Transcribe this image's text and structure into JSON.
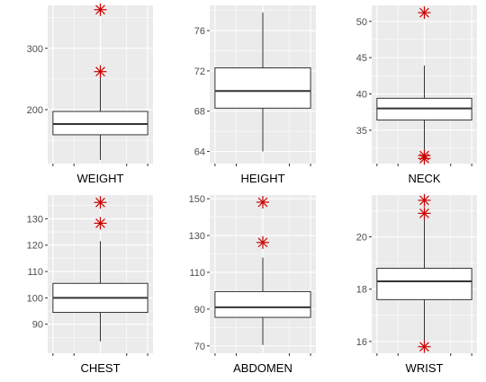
{
  "chart_data": [
    {
      "type": "boxplot",
      "xlabel": "WEIGHT",
      "ylim": [
        112,
        370
      ],
      "yticks": [
        200,
        300
      ],
      "box": {
        "lower_whisker": 118,
        "q1": 159,
        "median": 176.5,
        "q3": 197,
        "upper_whisker": 262
      },
      "outliers": [
        262,
        363
      ],
      "grid": true
    },
    {
      "type": "boxplot",
      "xlabel": "HEIGHT",
      "ylim": [
        62.8,
        78.5
      ],
      "yticks": [
        64,
        68,
        72,
        76
      ],
      "box": {
        "lower_whisker": 64,
        "q1": 68.3,
        "median": 70,
        "q3": 72.3,
        "upper_whisker": 77.8
      },
      "outliers": [],
      "grid": true
    },
    {
      "type": "boxplot",
      "xlabel": "NECK",
      "ylim": [
        30.4,
        52.2
      ],
      "yticks": [
        35,
        40,
        45,
        50
      ],
      "box": {
        "lower_whisker": 31.5,
        "q1": 36.4,
        "median": 38,
        "q3": 39.4,
        "upper_whisker": 43.9
      },
      "outliers": [
        31.1,
        31.5,
        51.2
      ],
      "grid": true
    },
    {
      "type": "boxplot",
      "xlabel": "CHEST",
      "ylim": [
        79,
        139
      ],
      "yticks": [
        90,
        100,
        110,
        120,
        130
      ],
      "box": {
        "lower_whisker": 83.5,
        "q1": 94.5,
        "median": 100,
        "q3": 105.5,
        "upper_whisker": 121.5
      },
      "outliers": [
        128.3,
        136.2
      ],
      "grid": true
    },
    {
      "type": "boxplot",
      "xlabel": "ABDOMEN",
      "ylim": [
        66,
        152
      ],
      "yticks": [
        70,
        90,
        110,
        130,
        150
      ],
      "box": {
        "lower_whisker": 70.5,
        "q1": 85.5,
        "median": 91,
        "q3": 99.5,
        "upper_whisker": 118
      },
      "outliers": [
        126.2,
        148.1
      ],
      "grid": true
    },
    {
      "type": "boxplot",
      "xlabel": "WRIST",
      "ylim": [
        15.55,
        21.6
      ],
      "yticks": [
        16,
        18,
        20
      ],
      "box": {
        "lower_whisker": 15.8,
        "q1": 17.6,
        "median": 18.3,
        "q3": 18.8,
        "upper_whisker": 20.9
      },
      "outliers": [
        15.8,
        20.9,
        21.4
      ],
      "grid": true
    }
  ]
}
